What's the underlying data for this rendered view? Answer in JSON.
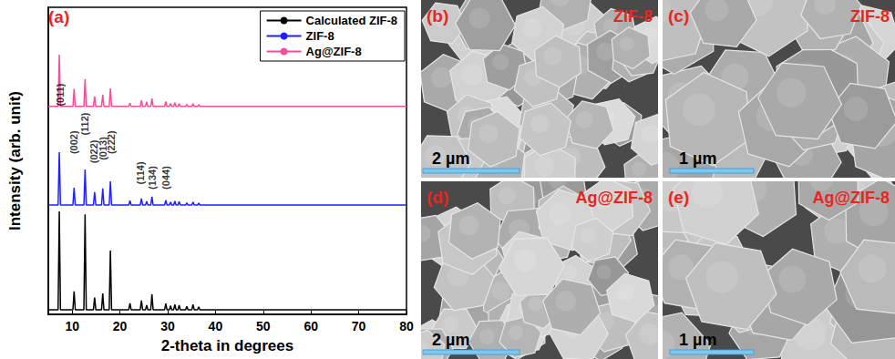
{
  "chart_data": {
    "type": "line",
    "panel_label": "(a)",
    "x_label": "2-theta in degrees",
    "y_label": "Intensity (arb. unit)",
    "xlim": [
      5,
      80
    ],
    "xticks": [
      10,
      20,
      30,
      40,
      50,
      60,
      70,
      80
    ],
    "ylim": [
      0,
      100
    ],
    "tick_labels": "x",
    "legend": "upper right",
    "grid": false,
    "x": [
      5,
      7.05,
      7.3,
      7.55,
      10.15,
      10.4,
      10.65,
      12.45,
      12.7,
      12.95,
      14.45,
      14.7,
      14.95,
      16.15,
      16.4,
      16.65,
      17.75,
      18.0,
      18.25,
      21.85,
      22.1,
      22.35,
      24.25,
      24.5,
      24.75,
      25.35,
      25.6,
      25.85,
      26.45,
      26.7,
      26.95,
      29.35,
      29.6,
      29.85,
      30.35,
      30.6,
      30.85,
      31.25,
      31.5,
      31.75,
      32.15,
      32.4,
      32.65,
      33.75,
      34.0,
      34.25,
      35.05,
      35.3,
      35.55,
      36.25,
      36.5,
      36.75,
      80
    ],
    "series": [
      {
        "name": "Calculated ZIF-8",
        "color": "#000000",
        "values": [
          1.5,
          1.5,
          33.5,
          1.5,
          1.5,
          7.5,
          1.5,
          1.5,
          32.6,
          1.5,
          1.5,
          5.5,
          1.5,
          1.5,
          6.8,
          1.5,
          1.5,
          20.8,
          1.5,
          1.5,
          3.6,
          1.5,
          1.5,
          4.5,
          1.5,
          1.5,
          3.0,
          1.5,
          1.5,
          6.5,
          1.5,
          1.5,
          3.5,
          1.5,
          1.5,
          2.8,
          1.5,
          1.5,
          3.2,
          1.5,
          1.5,
          3.0,
          1.5,
          1.5,
          2.6,
          1.5,
          1.5,
          3.2,
          1.5,
          1.5,
          2.4,
          1.5,
          1.5
        ]
      },
      {
        "name": "ZIF-8",
        "color": "#1f1fff",
        "values": [
          35.6,
          35.6,
          52.8,
          35.6,
          35.6,
          41.2,
          35.6,
          35.6,
          47.2,
          35.6,
          35.6,
          39.8,
          35.6,
          35.6,
          41.0,
          35.6,
          35.6,
          43.3,
          35.6,
          35.6,
          37.0,
          35.6,
          35.6,
          37.7,
          35.6,
          35.6,
          36.8,
          35.6,
          35.6,
          38.3,
          35.6,
          35.6,
          37.2,
          35.6,
          35.6,
          36.6,
          35.6,
          35.6,
          36.9,
          35.6,
          35.6,
          36.7,
          35.6,
          35.6,
          36.3,
          35.6,
          35.6,
          36.6,
          35.6,
          35.6,
          36.2,
          35.6,
          35.6
        ]
      },
      {
        "name": "Ag@ZIF-8",
        "color": "#f0509a",
        "values": [
          67.7,
          67.7,
          84.6,
          67.7,
          67.7,
          73.4,
          67.7,
          67.7,
          76.6,
          67.7,
          67.7,
          71.0,
          67.7,
          67.7,
          71.5,
          67.7,
          67.7,
          73.6,
          67.7,
          67.7,
          68.8,
          67.7,
          67.7,
          69.7,
          67.7,
          67.7,
          69.2,
          67.7,
          67.7,
          70.3,
          67.7,
          67.7,
          69.3,
          67.7,
          67.7,
          68.7,
          67.7,
          67.7,
          68.9,
          67.7,
          67.7,
          68.6,
          67.7,
          67.7,
          68.4,
          67.7,
          67.7,
          68.6,
          67.7,
          67.7,
          68.3,
          67.7,
          67.7
        ]
      }
    ],
    "annotations": [
      {
        "text": "(011)",
        "x": 7.5,
        "y": 71.5
      },
      {
        "text": "(002)",
        "x": 10.4,
        "y": 56
      },
      {
        "text": "(112)",
        "x": 12.7,
        "y": 62
      },
      {
        "text": "(022)",
        "x": 14.6,
        "y": 53
      },
      {
        "text": "(013)",
        "x": 16.5,
        "y": 54
      },
      {
        "text": "(222)",
        "x": 18.2,
        "y": 56
      },
      {
        "text": "(114)",
        "x": 24.3,
        "y": 46
      },
      {
        "text": "(134)",
        "x": 26.7,
        "y": 44.5
      },
      {
        "text": "(044)",
        "x": 29.6,
        "y": 44.5
      }
    ]
  },
  "panels": [
    {
      "label": "(b)",
      "sample": "ZIF-8",
      "scale_bar": "2 µm"
    },
    {
      "label": "(c)",
      "sample": "ZIF-8",
      "scale_bar": "1 µm"
    },
    {
      "label": "(d)",
      "sample": "Ag@ZIF-8",
      "scale_bar": "2 µm"
    },
    {
      "label": "(e)",
      "sample": "Ag@ZIF-8",
      "scale_bar": "1 µm"
    }
  ]
}
